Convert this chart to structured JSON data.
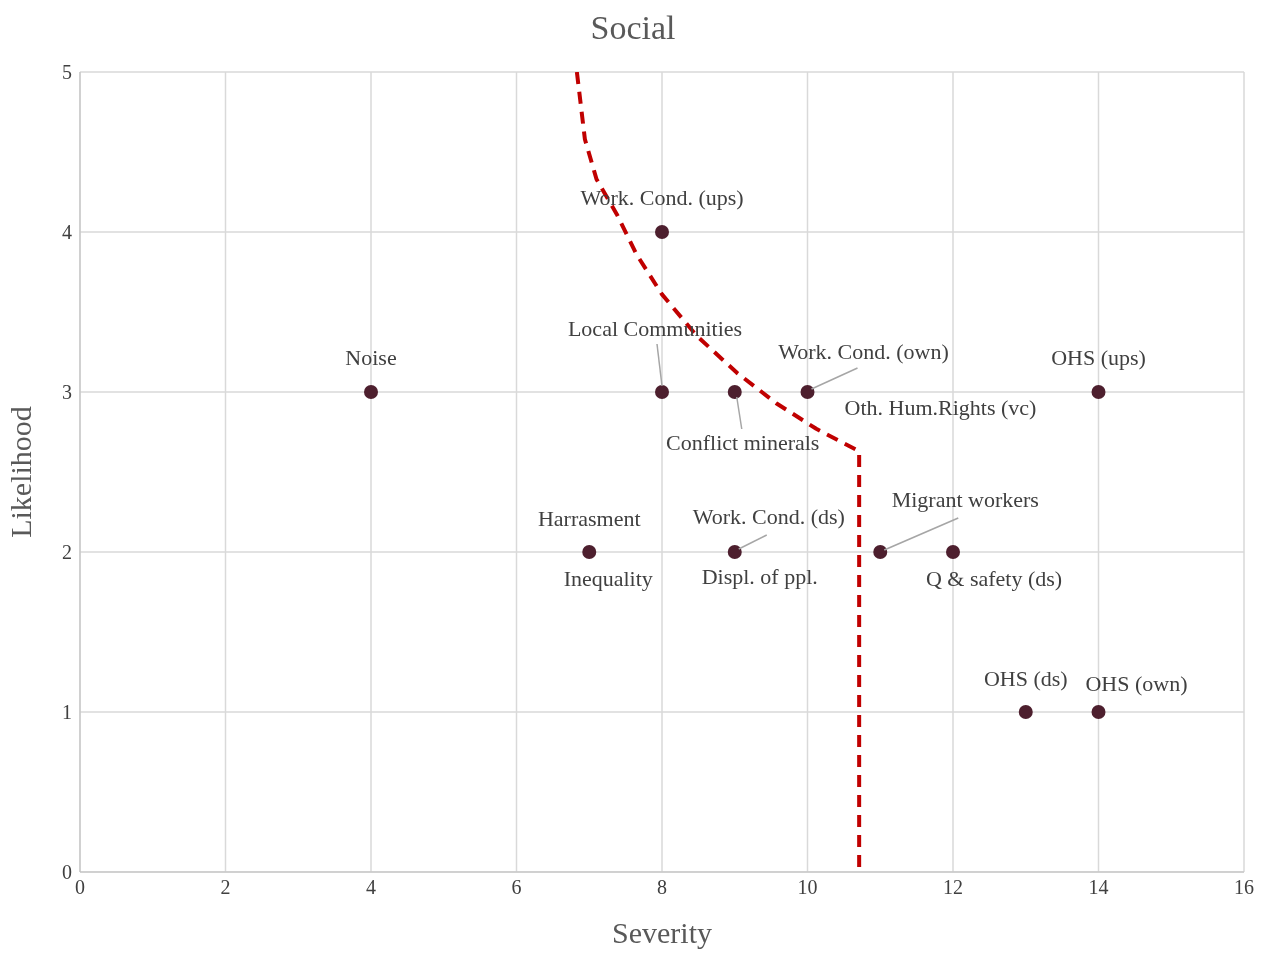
{
  "chart_data": {
    "type": "scatter",
    "title": "Social",
    "xlabel": "Severity",
    "ylabel": "Likelihood",
    "xlim": [
      0,
      16
    ],
    "xticks": [
      0,
      2,
      4,
      6,
      8,
      10,
      12,
      14,
      16
    ],
    "ylim": [
      0,
      5
    ],
    "yticks": [
      0,
      1,
      2,
      3,
      4,
      5
    ],
    "grid": true,
    "legend": false,
    "series": [
      {
        "type": "scatter",
        "color": "#4d1f2e",
        "marker": "circle",
        "x": [
          4,
          8,
          8,
          9,
          10,
          14,
          7,
          9,
          11,
          12,
          13,
          14
        ],
        "values": [
          3,
          4,
          3,
          3,
          3,
          3,
          2,
          2,
          2,
          2,
          1,
          1
        ]
      },
      {
        "type": "line",
        "color": "#c00000",
        "line_style": "dashed",
        "marker": "none",
        "x": [
          6.83,
          6.94,
          7.1,
          7.38,
          7.65,
          8,
          8.48,
          9.03,
          9.57,
          10.12,
          10.71,
          10.71
        ],
        "values": [
          5,
          4.58,
          4.33,
          4.11,
          3.86,
          3.61,
          3.35,
          3.12,
          2.93,
          2.77,
          2.63,
          0
        ]
      }
    ],
    "annotations": [
      {
        "text": "Noise",
        "x": 4,
        "y": 3
      },
      {
        "text": "Work. Cond. (ups)",
        "x": 8,
        "y": 4
      },
      {
        "text": "Local Communities",
        "x": 8,
        "y": 3
      },
      {
        "text": "Conflict minerals",
        "x": 9,
        "y": 3
      },
      {
        "text": "Work. Cond. (own)",
        "x": 10,
        "y": 3
      },
      {
        "text": "Oth. Hum.Rights (vc)",
        "x": 10,
        "y": 3
      },
      {
        "text": "OHS (ups)",
        "x": 14,
        "y": 3
      },
      {
        "text": "Harrasment",
        "x": 7,
        "y": 2
      },
      {
        "text": "Inequality",
        "x": 7,
        "y": 2
      },
      {
        "text": "Work. Cond. (ds)",
        "x": 9,
        "y": 2
      },
      {
        "text": "Displ. of ppl.",
        "x": 9,
        "y": 2
      },
      {
        "text": "Migrant workers",
        "x": 11,
        "y": 2
      },
      {
        "text": "Q & safety (ds)",
        "x": 12,
        "y": 2
      },
      {
        "text": "OHS (ds)",
        "x": 13,
        "y": 1
      },
      {
        "text": "OHS (own)",
        "x": 14,
        "y": 1
      }
    ]
  }
}
